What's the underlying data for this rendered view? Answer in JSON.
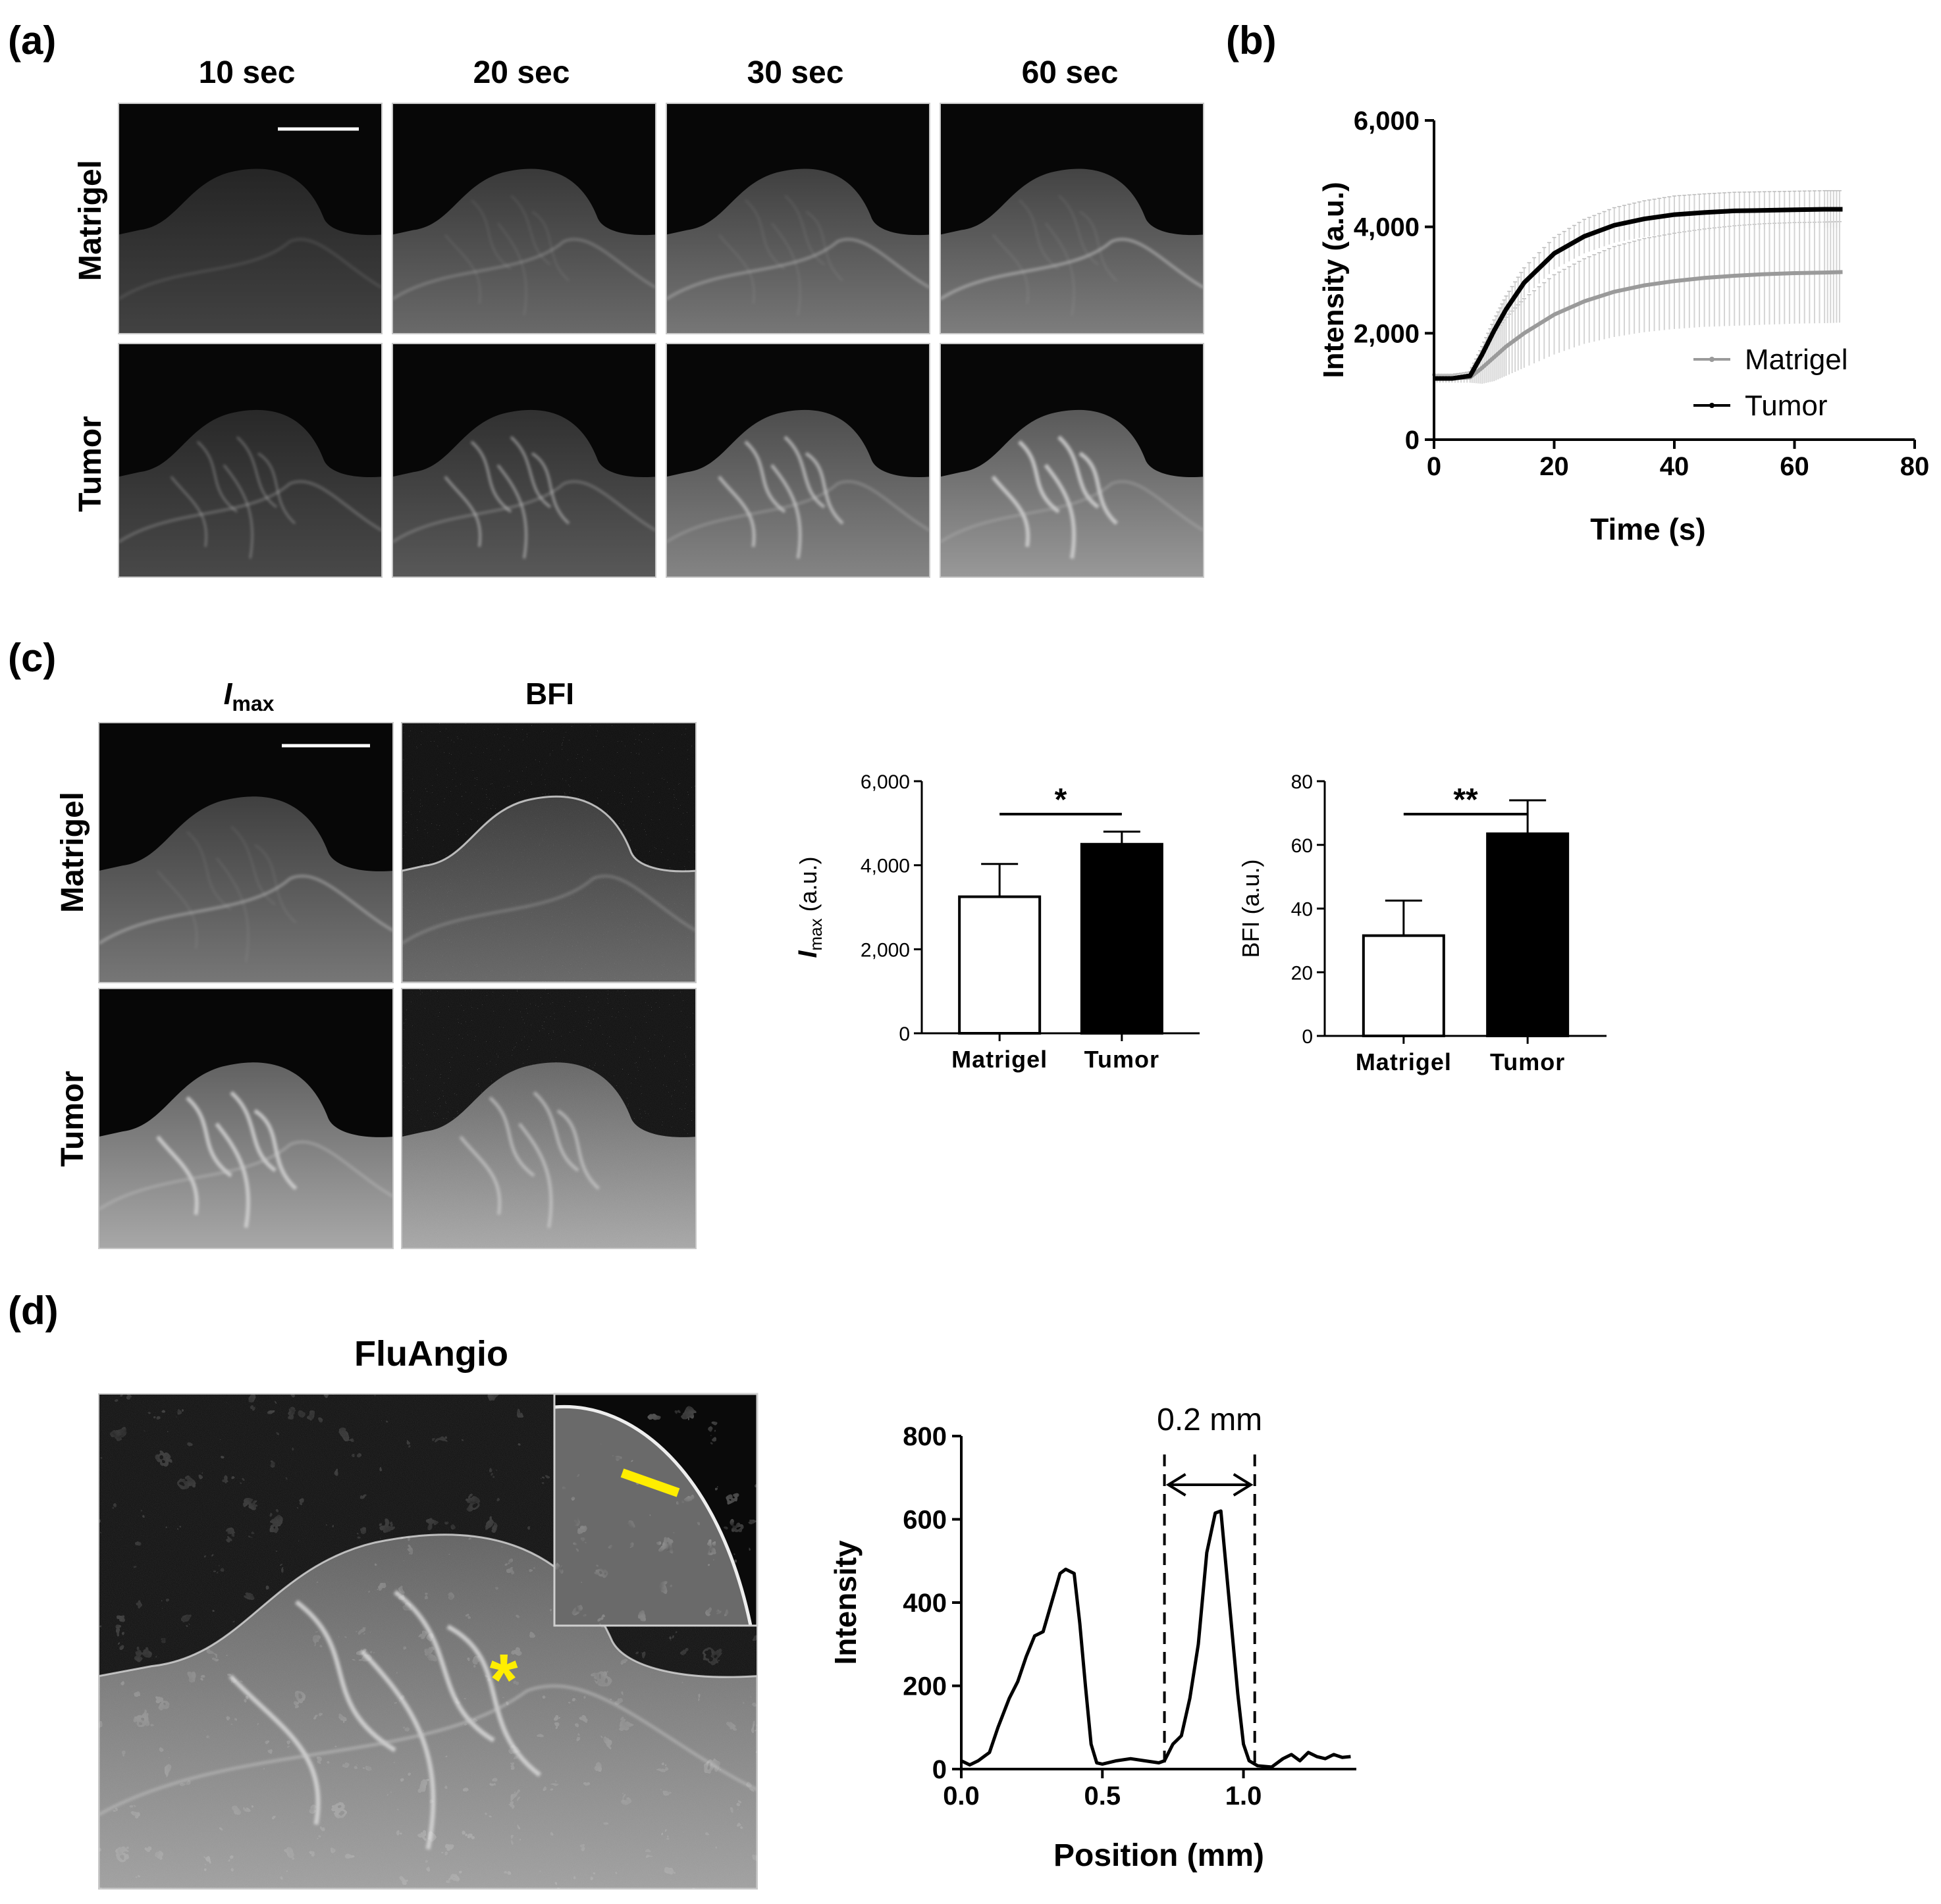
{
  "panel_labels": {
    "a": "(a)",
    "b": "(b)",
    "c": "(c)",
    "d": "(d)"
  },
  "panel_a": {
    "columns": [
      "10 sec",
      "20 sec",
      "30 sec",
      "60 sec"
    ],
    "rows": [
      "Matrigel",
      "Tumor"
    ]
  },
  "panel_c": {
    "col_imax_italic": "I",
    "col_imax_sub": "max",
    "col_bfi": "BFI",
    "rows": [
      "Matrigel",
      "Tumor"
    ]
  },
  "panel_d": {
    "title": "FluAngio",
    "annotation": "0.2 mm",
    "asterisk": "*"
  },
  "colors": {
    "tumor": "#000000",
    "matrigel": "#9a9a9a",
    "errorbar": "#d4d4d4",
    "highlight": "#ffee00"
  },
  "chart_data": [
    {
      "id": "intensity-time",
      "type": "line",
      "xlabel": "Time (s)",
      "ylabel": "Intensity (a.u.)",
      "xlim": [
        0,
        80
      ],
      "ylim": [
        0,
        6000
      ],
      "xticks": [
        "0",
        "20",
        "40",
        "60",
        "80"
      ],
      "yticks": [
        "0",
        "2,000",
        "4,000",
        "6,000"
      ],
      "legend_position": "bottom-right",
      "series": [
        {
          "name": "Matrigel",
          "color": "#9a9a9a",
          "x": [
            0,
            3,
            6,
            8,
            10,
            12,
            15,
            20,
            25,
            30,
            35,
            40,
            45,
            50,
            55,
            60,
            65,
            68
          ],
          "y": [
            1150,
            1150,
            1170,
            1350,
            1550,
            1750,
            2000,
            2350,
            2600,
            2780,
            2900,
            2980,
            3040,
            3080,
            3110,
            3130,
            3140,
            3150
          ],
          "err": [
            80,
            80,
            100,
            300,
            450,
            550,
            650,
            750,
            800,
            850,
            880,
            900,
            920,
            940,
            950,
            950,
            950,
            950
          ]
        },
        {
          "name": "Tumor",
          "color": "#000000",
          "x": [
            0,
            3,
            6,
            8,
            10,
            12,
            15,
            20,
            25,
            30,
            35,
            40,
            45,
            50,
            55,
            60,
            65,
            68
          ],
          "y": [
            1150,
            1150,
            1200,
            1600,
            2050,
            2450,
            2950,
            3500,
            3820,
            4030,
            4150,
            4230,
            4270,
            4300,
            4310,
            4320,
            4330,
            4330
          ],
          "err": [
            60,
            60,
            80,
            150,
            200,
            250,
            280,
            300,
            320,
            330,
            340,
            350,
            350,
            350,
            350,
            350,
            350,
            350
          ]
        }
      ]
    },
    {
      "id": "imax-bar",
      "type": "bar",
      "categories": [
        "Matrigel",
        "Tumor"
      ],
      "values": [
        3250,
        4500
      ],
      "err": [
        780,
        300
      ],
      "ylabel_italic": "I",
      "ylabel_sub": "max",
      "ylabel_rest": " (a.u.)",
      "ylim": [
        0,
        6000
      ],
      "yticks": [
        "0",
        "2,000",
        "4,000",
        "6,000"
      ],
      "significance": "*"
    },
    {
      "id": "bfi-bar",
      "type": "bar",
      "categories": [
        "Matrigel",
        "Tumor"
      ],
      "values": [
        31.5,
        63.5
      ],
      "err": [
        11,
        10.5
      ],
      "ylabel": "BFI (a.u.)",
      "ylim": [
        0,
        80
      ],
      "yticks": [
        "0",
        "20",
        "40",
        "60",
        "80"
      ],
      "significance": "**"
    },
    {
      "id": "line-profile",
      "type": "line",
      "xlabel": "Position (mm)",
      "ylabel": "Intensity",
      "xlim": [
        0,
        1.4
      ],
      "ylim": [
        0,
        800
      ],
      "xticks": [
        "0.0",
        "0.5",
        "1.0"
      ],
      "yticks": [
        "0",
        "200",
        "400",
        "600",
        "800"
      ],
      "dashed_x": [
        0.72,
        1.04
      ],
      "series": [
        {
          "name": "",
          "color": "#000000",
          "x": [
            0,
            0.03,
            0.06,
            0.1,
            0.13,
            0.17,
            0.2,
            0.23,
            0.26,
            0.29,
            0.32,
            0.35,
            0.37,
            0.4,
            0.42,
            0.44,
            0.46,
            0.48,
            0.5,
            0.55,
            0.6,
            0.65,
            0.7,
            0.72,
            0.75,
            0.78,
            0.81,
            0.84,
            0.87,
            0.9,
            0.92,
            0.95,
            0.98,
            1.0,
            1.02,
            1.05,
            1.1,
            1.14,
            1.17,
            1.2,
            1.23,
            1.26,
            1.29,
            1.32,
            1.35,
            1.38
          ],
          "y": [
            20,
            10,
            20,
            40,
            100,
            170,
            210,
            270,
            320,
            330,
            400,
            470,
            480,
            470,
            350,
            200,
            60,
            15,
            12,
            20,
            25,
            20,
            15,
            20,
            60,
            80,
            170,
            300,
            520,
            615,
            620,
            400,
            180,
            60,
            20,
            8,
            5,
            25,
            35,
            20,
            40,
            30,
            25,
            35,
            28,
            30
          ]
        }
      ]
    }
  ]
}
